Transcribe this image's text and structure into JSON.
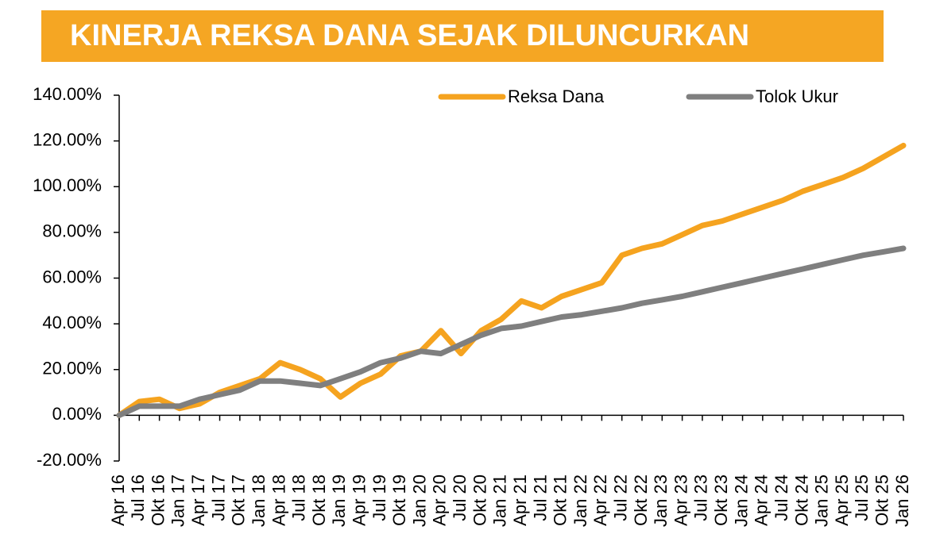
{
  "chart_data": {
    "type": "line",
    "title": "KINERJA REKSA DANA SEJAK DILUNCURKAN",
    "categories": [
      "Apr 16",
      "Jul 16",
      "Okt 16",
      "Jan 17",
      "Apr 17",
      "Jul 17",
      "Okt 17",
      "Jan 18",
      "Apr 18",
      "Jul 18",
      "Okt 18",
      "Jan 19",
      "Apr 19",
      "Jul 19",
      "Okt 19",
      "Jan 20",
      "Apr 20",
      "Jul 20",
      "Okt 20",
      "Jan 21",
      "Apr 21",
      "Jul 21",
      "Okt 21",
      "Jan 22",
      "Apr 22",
      "Jul 22",
      "Okt 22",
      "Jan 23",
      "Apr 23",
      "Jul 23",
      "Okt 23",
      "Jan 24",
      "Apr 24",
      "Jul 24",
      "Okt 24",
      "Jan 25",
      "Apr 25",
      "Jul 25",
      "Okt 25",
      "Jan 26"
    ],
    "series": [
      {
        "name": "Reksa Dana",
        "color": "#f5a31f",
        "values": [
          0,
          6,
          7,
          3,
          5,
          10,
          13,
          16,
          23,
          20,
          16,
          8,
          14,
          18,
          26,
          28,
          37,
          27,
          37,
          42,
          50,
          47,
          52,
          55,
          58,
          70,
          73,
          75,
          79,
          83,
          85,
          88,
          91,
          94,
          98,
          101,
          104,
          108,
          113,
          118
        ]
      },
      {
        "name": "Tolok Ukur",
        "color": "#7f7f7f",
        "values": [
          0,
          4,
          4,
          4,
          7,
          9,
          11,
          15,
          15,
          14,
          13,
          16,
          19,
          23,
          25,
          28,
          27,
          31,
          35,
          38,
          39,
          41,
          43,
          44,
          45.5,
          47,
          49,
          50.5,
          52,
          54,
          56,
          58,
          60,
          62,
          64,
          66,
          68,
          70,
          71.5,
          73
        ]
      }
    ],
    "ylim": [
      -20,
      140
    ],
    "yticks": [
      {
        "value": -20,
        "label": "-20.00%"
      },
      {
        "value": 0,
        "label": "0.00%"
      },
      {
        "value": 20,
        "label": "20.00%"
      },
      {
        "value": 40,
        "label": "40.00%"
      },
      {
        "value": 60,
        "label": "60.00%"
      },
      {
        "value": 80,
        "label": "80.00%"
      },
      {
        "value": 100,
        "label": "100.00%"
      },
      {
        "value": 120,
        "label": "120.00%"
      },
      {
        "value": 140,
        "label": "140.00%"
      }
    ],
    "grid": false,
    "legend": "top"
  }
}
